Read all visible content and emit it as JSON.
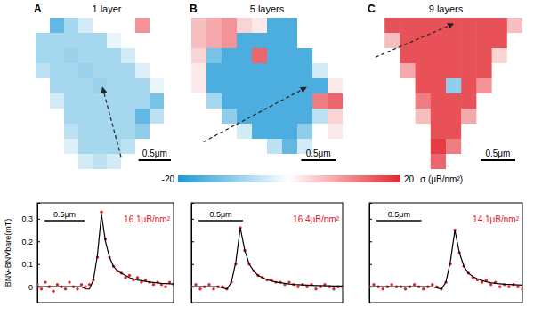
{
  "chart_data": [
    {
      "type": "heatmap",
      "panel_label": "A",
      "title": "1 layer",
      "xlim": [
        0,
        2.2
      ],
      "ylim": [
        0,
        2.2
      ],
      "tick_labels": false,
      "scale_bar": {
        "value": 0.5,
        "label": "0.5μm"
      },
      "cells": [
        [
          0,
          -14,
          -8,
          -4,
          0,
          0,
          0,
          10,
          0,
          0
        ],
        [
          -8,
          -8,
          -8,
          -8,
          -8,
          -2,
          0,
          0,
          0,
          0
        ],
        [
          -8,
          -8,
          -9,
          -8,
          -8,
          -8,
          -4,
          0,
          0,
          0
        ],
        [
          -6,
          -8,
          -8,
          -9,
          -8,
          -8,
          -8,
          -3,
          0,
          0
        ],
        [
          0,
          -8,
          -8,
          -8,
          -9,
          -8,
          -8,
          -8,
          -2,
          0
        ],
        [
          0,
          -4,
          -8,
          -8,
          -8,
          -8,
          -8,
          -8,
          -12,
          0
        ],
        [
          0,
          0,
          -8,
          -8,
          -8,
          -8,
          -8,
          -14,
          -6,
          0
        ],
        [
          0,
          0,
          -6,
          -8,
          -8,
          -8,
          -8,
          -10,
          0,
          0
        ],
        [
          0,
          0,
          -3,
          -8,
          -8,
          -8,
          -6,
          0,
          0,
          0
        ],
        [
          0,
          0,
          0,
          -4,
          -6,
          -4,
          0,
          0,
          0,
          0
        ]
      ]
    },
    {
      "type": "heatmap",
      "panel_label": "B",
      "title": "5 layers",
      "xlim": [
        0,
        2.2
      ],
      "ylim": [
        0,
        2.2
      ],
      "tick_labels": false,
      "scale_bar": {
        "value": 0.5,
        "label": "0.5μm"
      },
      "cells": [
        [
          6,
          8,
          10,
          4,
          2,
          -16,
          -16,
          0,
          0,
          0
        ],
        [
          6,
          8,
          10,
          -16,
          -16,
          -16,
          -16,
          0,
          0,
          0
        ],
        [
          4,
          -12,
          -16,
          -16,
          14,
          -16,
          -16,
          -16,
          0,
          0
        ],
        [
          2,
          -16,
          -16,
          -16,
          -16,
          -16,
          -16,
          -16,
          -4,
          0
        ],
        [
          2,
          -16,
          -16,
          -16,
          -16,
          -16,
          -16,
          -16,
          -16,
          2
        ],
        [
          0,
          -8,
          -16,
          -16,
          -16,
          -16,
          -16,
          -16,
          12,
          14
        ],
        [
          0,
          0,
          -10,
          -16,
          -16,
          -16,
          -16,
          -16,
          -6,
          4
        ],
        [
          0,
          0,
          0,
          -4,
          -16,
          -16,
          -16,
          -10,
          0,
          2
        ],
        [
          0,
          0,
          0,
          0,
          0,
          -6,
          -14,
          -4,
          0,
          0
        ],
        [
          0,
          0,
          0,
          0,
          0,
          0,
          0,
          0,
          0,
          0
        ]
      ]
    },
    {
      "type": "heatmap",
      "panel_label": "C",
      "title": "9 layers",
      "xlim": [
        0,
        2.2
      ],
      "ylim": [
        0,
        2.2
      ],
      "tick_labels": false,
      "scale_bar": {
        "value": 0.5,
        "label": "0.5μm"
      },
      "cells": [
        [
          0,
          16,
          16,
          16,
          16,
          16,
          16,
          16,
          16,
          6
        ],
        [
          0,
          6,
          16,
          16,
          16,
          16,
          16,
          16,
          16,
          0
        ],
        [
          0,
          0,
          16,
          16,
          16,
          16,
          16,
          16,
          4,
          0
        ],
        [
          0,
          0,
          8,
          16,
          16,
          16,
          16,
          16,
          0,
          0
        ],
        [
          0,
          0,
          0,
          16,
          16,
          -10,
          16,
          10,
          0,
          0
        ],
        [
          0,
          0,
          0,
          12,
          16,
          16,
          16,
          0,
          0,
          0
        ],
        [
          0,
          0,
          0,
          6,
          16,
          16,
          8,
          0,
          0,
          0
        ],
        [
          0,
          0,
          0,
          0,
          16,
          16,
          0,
          0,
          0,
          0
        ],
        [
          0,
          0,
          0,
          0,
          18,
          12,
          0,
          0,
          0,
          0
        ],
        [
          0,
          0,
          0,
          0,
          14,
          0,
          0,
          0,
          0,
          0
        ]
      ]
    },
    {
      "type": "line",
      "y_label": "BNV-BNVbare(mT)",
      "annotation": "16.1μB/nm²",
      "xlim": [
        0,
        1.7
      ],
      "ylim": [
        -0.07,
        0.37
      ],
      "yticks": [
        0,
        0.1,
        0.2,
        0.3
      ],
      "tick_labels": "y",
      "scale_bar": {
        "value": 0.5,
        "label": "0.5μm"
      },
      "x": [
        0,
        0.05,
        0.1,
        0.15,
        0.2,
        0.25,
        0.3,
        0.35,
        0.4,
        0.45,
        0.5,
        0.55,
        0.6,
        0.65,
        0.7,
        0.75,
        0.8,
        0.85,
        0.9,
        0.95,
        1.0,
        1.05,
        1.1,
        1.15,
        1.2,
        1.25,
        1.3,
        1.35,
        1.4,
        1.45,
        1.5,
        1.55,
        1.6,
        1.65,
        1.7
      ],
      "series": [
        {
          "type": "scatter",
          "marker": "circle",
          "color": "#e0242a",
          "values": [
            0.01,
            -0.01,
            0.02,
            0.0,
            -0.02,
            0.01,
            0.0,
            -0.01,
            0.02,
            0.0,
            -0.01,
            0.01,
            0.0,
            0.01,
            0.03,
            0.13,
            0.33,
            0.21,
            0.13,
            0.09,
            0.07,
            0.06,
            0.04,
            0.05,
            0.03,
            0.04,
            0.02,
            0.03,
            0.02,
            0.01,
            0.02,
            0.01,
            0.0,
            0.02,
            0.01
          ]
        },
        {
          "type": "line",
          "line_style": "solid",
          "color": "#000000",
          "values": [
            0,
            0,
            0,
            0,
            0,
            0,
            0,
            0,
            0,
            0,
            0,
            0,
            -0.01,
            -0.01,
            0.03,
            0.14,
            0.32,
            0.2,
            0.13,
            0.09,
            0.07,
            0.06,
            0.05,
            0.04,
            0.035,
            0.03,
            0.027,
            0.024,
            0.021,
            0.019,
            0.017,
            0.015,
            0.014,
            0.013,
            0.012
          ]
        }
      ]
    },
    {
      "type": "line",
      "annotation": "16.4μB/nm²",
      "xlim": [
        0,
        1.7
      ],
      "ylim": [
        -0.07,
        0.37
      ],
      "yticks": [
        0,
        0.1,
        0.2,
        0.3
      ],
      "tick_labels": false,
      "scale_bar": {
        "value": 0.5,
        "label": "0.5μm"
      },
      "x": [
        0,
        0.05,
        0.1,
        0.15,
        0.2,
        0.25,
        0.3,
        0.35,
        0.4,
        0.45,
        0.5,
        0.55,
        0.6,
        0.65,
        0.7,
        0.75,
        0.8,
        0.85,
        0.9,
        0.95,
        1.0,
        1.05,
        1.1,
        1.15,
        1.2,
        1.25,
        1.3,
        1.35,
        1.4,
        1.45,
        1.5,
        1.55,
        1.6,
        1.65,
        1.7
      ],
      "series": [
        {
          "type": "scatter",
          "marker": "circle",
          "color": "#e0242a",
          "values": [
            0.0,
            0.01,
            -0.01,
            0.0,
            0.01,
            -0.01,
            0.0,
            0.0,
            -0.01,
            0.02,
            0.1,
            0.26,
            0.16,
            0.1,
            0.07,
            0.05,
            0.04,
            0.03,
            0.03,
            0.02,
            0.02,
            0.01,
            0.02,
            0.01,
            0.0,
            0.01,
            0.0,
            0.01,
            -0.01,
            0.0,
            0.01,
            0.0,
            -0.01,
            0.0,
            0.0
          ]
        },
        {
          "type": "line",
          "line_style": "solid",
          "color": "#000000",
          "values": [
            0,
            0,
            0,
            0,
            0,
            0,
            0,
            -0.005,
            -0.01,
            0.02,
            0.11,
            0.26,
            0.16,
            0.1,
            0.07,
            0.05,
            0.04,
            0.032,
            0.026,
            0.021,
            0.018,
            0.015,
            0.012,
            0.01,
            0.009,
            0.008,
            0.007,
            0.006,
            0.005,
            0.005,
            0.004,
            0.004,
            0.003,
            0.003,
            0.003
          ]
        }
      ]
    },
    {
      "type": "line",
      "annotation": "14.1μB/nm²",
      "xlim": [
        0,
        1.7
      ],
      "ylim": [
        -0.07,
        0.37
      ],
      "yticks": [
        0,
        0.1,
        0.2,
        0.3
      ],
      "tick_labels": false,
      "scale_bar": {
        "value": 0.5,
        "label": "0.5μm"
      },
      "x": [
        0,
        0.05,
        0.1,
        0.15,
        0.2,
        0.25,
        0.3,
        0.35,
        0.4,
        0.45,
        0.5,
        0.55,
        0.6,
        0.65,
        0.7,
        0.75,
        0.8,
        0.85,
        0.9,
        0.95,
        1.0,
        1.05,
        1.1,
        1.15,
        1.2,
        1.25,
        1.3,
        1.35,
        1.4,
        1.45,
        1.5,
        1.55,
        1.6,
        1.65,
        1.7
      ],
      "series": [
        {
          "type": "scatter",
          "marker": "circle",
          "color": "#e0242a",
          "values": [
            0.0,
            0.01,
            0.0,
            -0.01,
            0.0,
            0.01,
            0.0,
            0.0,
            -0.01,
            0.0,
            0.01,
            0.0,
            -0.01,
            0.0,
            0.01,
            0.0,
            -0.01,
            0.02,
            0.1,
            0.25,
            0.15,
            0.09,
            0.06,
            0.04,
            0.03,
            0.02,
            0.03,
            0.01,
            0.02,
            0.0,
            0.01,
            0.0,
            0.01,
            0.0,
            -0.01
          ]
        },
        {
          "type": "line",
          "line_style": "solid",
          "color": "#000000",
          "values": [
            0,
            0,
            0,
            0,
            0,
            0,
            0,
            0,
            0,
            0,
            0,
            0,
            0,
            0,
            0,
            -0.005,
            -0.01,
            0.02,
            0.11,
            0.25,
            0.15,
            0.09,
            0.06,
            0.045,
            0.035,
            0.028,
            0.022,
            0.018,
            0.015,
            0.013,
            0.011,
            0.01,
            0.009,
            0.008,
            0.007
          ]
        }
      ]
    }
  ],
  "colorbar": {
    "range": [
      -20,
      20
    ],
    "ticks": [
      -20,
      20
    ],
    "label": "σ (μB/nm²)"
  }
}
